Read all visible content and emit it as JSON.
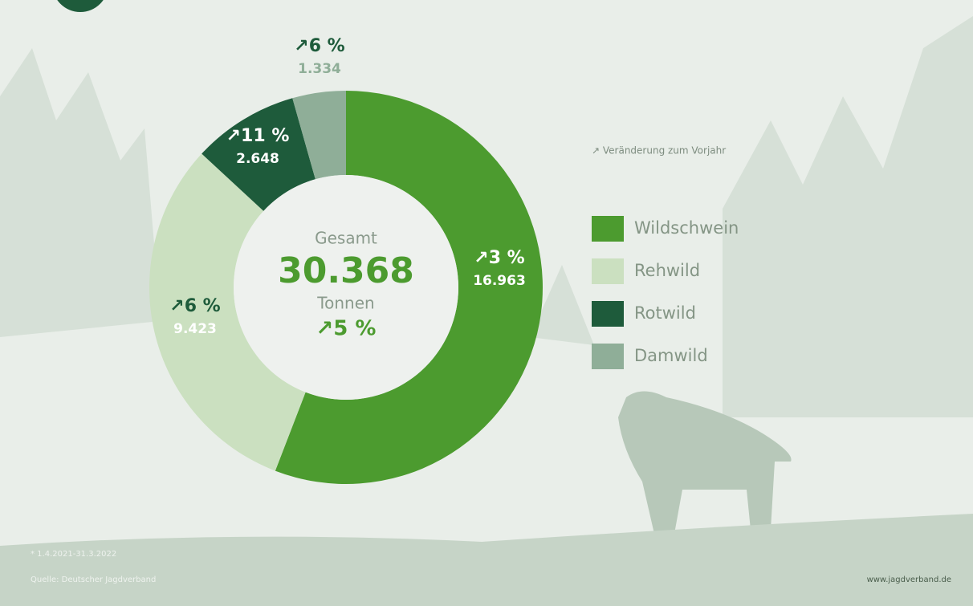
{
  "chart_data": {
    "type": "donut",
    "categories": [
      "Wildschwein",
      "Rehwild",
      "Rotwild",
      "Damwild"
    ],
    "values": [
      16963,
      9423,
      2648,
      1334
    ],
    "value_labels": [
      "16.963",
      "9.423",
      "2.648",
      "1.334"
    ],
    "change_labels": [
      "↗3 %",
      "↗6 %",
      "↗11 %",
      "↗6 %"
    ],
    "colors": [
      "#4c9b2f",
      "#cbe0c0",
      "#1e5b3b",
      "#8fae98"
    ],
    "center": {
      "caption": "Gesamt",
      "total": "30.368",
      "unit": "Tonnen",
      "change": "↗5 %"
    },
    "legend_note": "↗ Veränderung zum Vorjahr",
    "footnote": "* 1.4.2021-31.3.2022",
    "source": "Quelle: Deutscher Jagdverband",
    "website": "www.jagdverband.de"
  }
}
